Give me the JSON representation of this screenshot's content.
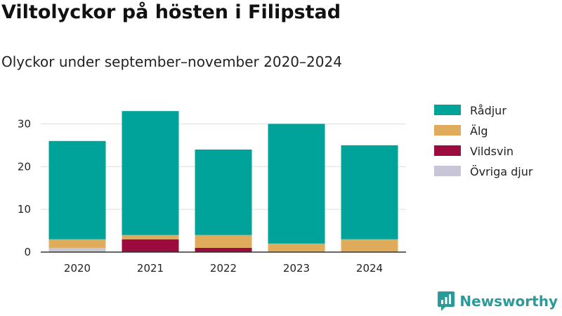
{
  "title": "Viltolyckor på hösten i Filipstad",
  "subtitle": "Olyckor under september–november 2020–2024",
  "brand": {
    "name": "Newsworthy",
    "icon": "newsworthy-logo-icon",
    "color": "#2b9a9a"
  },
  "chart_data": {
    "type": "bar",
    "stacked": true,
    "categories": [
      "2020",
      "2021",
      "2022",
      "2023",
      "2024"
    ],
    "series": [
      {
        "name": "Övriga djur",
        "color": "#c8c6d6",
        "values": [
          1,
          0,
          0,
          0,
          0
        ]
      },
      {
        "name": "Vildsvin",
        "color": "#9b0b3e",
        "values": [
          0,
          3,
          1,
          0,
          0
        ]
      },
      {
        "name": "Älg",
        "color": "#e0ac5c",
        "values": [
          2,
          1,
          3,
          2,
          3
        ]
      },
      {
        "name": "Rådjur",
        "color": "#00a39a",
        "values": [
          23,
          29,
          20,
          28,
          22
        ]
      }
    ],
    "yticks": [
      "0",
      "10",
      "20",
      "30"
    ],
    "ylim": [
      0,
      35
    ],
    "grid": true,
    "legend": {
      "position": "right",
      "order": [
        "Rådjur",
        "Älg",
        "Vildsvin",
        "Övriga djur"
      ]
    }
  }
}
